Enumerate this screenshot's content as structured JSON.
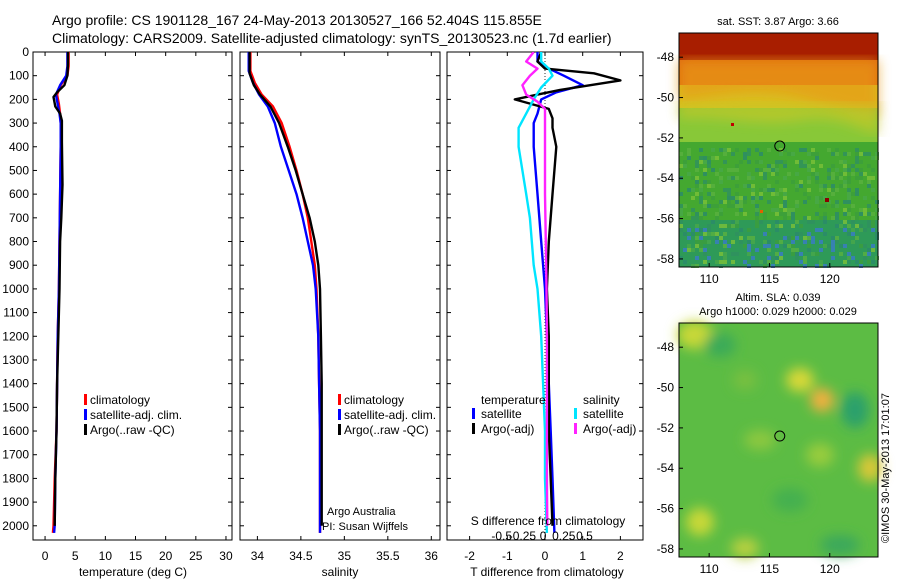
{
  "header": {
    "line1": "Argo profile: CS 1901128_167 24-May-2013 20130527_166 52.404S 115.855E",
    "line2": "Climatology: CARS2009. Satellite-adjusted climatology: synTS_20130523.nc (1.7d earlier)"
  },
  "colors": {
    "climatology": "#ff0000",
    "satellite": "#0000ff",
    "argo": "#000000",
    "satellite_s": "#00e5ff",
    "argo_s": "#ff22ff"
  },
  "chart_data": [
    {
      "id": "temperature",
      "type": "line",
      "xlabel": "temperature (deg C)",
      "ylabel": "",
      "xlim": [
        -2,
        31
      ],
      "ylim": [
        2060,
        0
      ],
      "xticks": [
        0,
        5,
        10,
        15,
        20,
        25,
        30
      ],
      "yticks": [
        0,
        100,
        200,
        300,
        400,
        500,
        600,
        700,
        800,
        900,
        1000,
        1100,
        1200,
        1300,
        1400,
        1500,
        1600,
        1700,
        1800,
        1900,
        2000
      ],
      "legend": [
        "climatology",
        "satellite-adj. clim.",
        "Argo(..raw -QC)"
      ],
      "series": [
        {
          "name": "climatology",
          "color_key": "climatology",
          "points": [
            [
              3.9,
              0
            ],
            [
              3.9,
              60
            ],
            [
              3.7,
              100
            ],
            [
              2.6,
              140
            ],
            [
              2.0,
              180
            ],
            [
              2.3,
              220
            ],
            [
              2.5,
              260
            ],
            [
              2.6,
              300
            ],
            [
              2.6,
              400
            ],
            [
              2.5,
              600
            ],
            [
              2.4,
              800
            ],
            [
              2.3,
              1000
            ],
            [
              2.1,
              1200
            ],
            [
              2.0,
              1400
            ],
            [
              1.9,
              1600
            ],
            [
              1.6,
              1800
            ],
            [
              1.4,
              2000
            ],
            [
              1.3,
              2030
            ]
          ]
        },
        {
          "name": "satellite-adj. clim.",
          "color_key": "satellite",
          "points": [
            [
              3.7,
              0
            ],
            [
              3.7,
              60
            ],
            [
              3.5,
              100
            ],
            [
              2.5,
              140
            ],
            [
              1.8,
              180
            ],
            [
              2.1,
              220
            ],
            [
              2.4,
              260
            ],
            [
              2.6,
              300
            ],
            [
              2.6,
              400
            ],
            [
              2.5,
              600
            ],
            [
              2.4,
              800
            ],
            [
              2.3,
              1000
            ],
            [
              2.1,
              1200
            ],
            [
              2.0,
              1400
            ],
            [
              1.9,
              1600
            ],
            [
              1.7,
              1800
            ],
            [
              1.6,
              2000
            ],
            [
              1.5,
              2030
            ]
          ]
        },
        {
          "name": "Argo(..raw -QC)",
          "color_key": "argo",
          "points": [
            [
              3.8,
              0
            ],
            [
              3.8,
              50
            ],
            [
              3.7,
              100
            ],
            [
              3.2,
              140
            ],
            [
              2.0,
              170
            ],
            [
              1.4,
              190
            ],
            [
              1.7,
              230
            ],
            [
              2.5,
              260
            ],
            [
              2.8,
              290
            ],
            [
              2.8,
              380
            ],
            [
              2.9,
              560
            ],
            [
              2.7,
              700
            ],
            [
              2.5,
              800
            ],
            [
              2.4,
              1000
            ],
            [
              2.2,
              1200
            ],
            [
              2.0,
              1400
            ],
            [
              1.9,
              1600
            ],
            [
              1.7,
              1800
            ],
            [
              1.6,
              2000
            ]
          ]
        }
      ]
    },
    {
      "id": "salinity",
      "type": "line",
      "xlabel": "salinity",
      "ylabel": "",
      "xlim": [
        33.8,
        36.1
      ],
      "ylim": [
        2060,
        0
      ],
      "xticks": [
        34,
        34.5,
        35,
        35.5,
        36
      ],
      "legend": [
        "climatology",
        "satellite-adj. clim.",
        "Argo(..raw -QC)"
      ],
      "annotation": [
        "Argo Australia",
        "PI: Susan Wijffels"
      ],
      "series": [
        {
          "name": "climatology",
          "color_key": "climatology",
          "points": [
            [
              33.92,
              0
            ],
            [
              33.92,
              80
            ],
            [
              33.97,
              130
            ],
            [
              34.05,
              180
            ],
            [
              34.18,
              230
            ],
            [
              34.28,
              300
            ],
            [
              34.37,
              400
            ],
            [
              34.45,
              500
            ],
            [
              34.52,
              600
            ],
            [
              34.58,
              700
            ],
            [
              34.62,
              800
            ],
            [
              34.66,
              900
            ],
            [
              34.68,
              1000
            ],
            [
              34.7,
              1200
            ],
            [
              34.71,
              1400
            ],
            [
              34.72,
              1600
            ],
            [
              34.72,
              1800
            ],
            [
              34.72,
              2030
            ]
          ]
        },
        {
          "name": "satellite-adj. clim.",
          "color_key": "satellite",
          "points": [
            [
              33.9,
              0
            ],
            [
              33.9,
              80
            ],
            [
              33.95,
              130
            ],
            [
              34.02,
              180
            ],
            [
              34.12,
              230
            ],
            [
              34.2,
              300
            ],
            [
              34.27,
              400
            ],
            [
              34.36,
              500
            ],
            [
              34.45,
              600
            ],
            [
              34.52,
              700
            ],
            [
              34.58,
              800
            ],
            [
              34.64,
              900
            ],
            [
              34.67,
              1000
            ],
            [
              34.7,
              1200
            ],
            [
              34.71,
              1400
            ],
            [
              34.72,
              1600
            ],
            [
              34.72,
              1800
            ],
            [
              34.72,
              2030
            ]
          ]
        },
        {
          "name": "Argo(..raw -QC)",
          "color_key": "argo",
          "points": [
            [
              33.91,
              0
            ],
            [
              33.91,
              90
            ],
            [
              33.96,
              140
            ],
            [
              34.03,
              180
            ],
            [
              34.15,
              230
            ],
            [
              34.25,
              300
            ],
            [
              34.35,
              400
            ],
            [
              34.44,
              500
            ],
            [
              34.52,
              600
            ],
            [
              34.6,
              700
            ],
            [
              34.66,
              800
            ],
            [
              34.7,
              900
            ],
            [
              34.72,
              1000
            ],
            [
              34.73,
              1200
            ],
            [
              34.74,
              1400
            ],
            [
              34.74,
              1600
            ],
            [
              34.74,
              1800
            ],
            [
              34.74,
              2000
            ]
          ]
        }
      ]
    },
    {
      "id": "difference",
      "type": "line",
      "xlabel": "T difference from climatology",
      "xlabel_top": "S difference from climatology",
      "xlim": [
        -2.6,
        2.6
      ],
      "ylim": [
        2060,
        0
      ],
      "xticks": [
        -2,
        -1,
        0,
        1,
        2
      ],
      "xticks_labels": [
        "-2",
        "-1",
        "0",
        "1",
        "2"
      ],
      "sticks_labels": [
        "-0.5",
        "-0.25",
        "0",
        "0.25",
        "0.5"
      ],
      "legend_titles": [
        "temperature",
        "salinity"
      ],
      "legend": [
        "satellite",
        "Argo(-adj)",
        "satellite",
        "Argo(-adj)"
      ],
      "series": [
        {
          "name": "satellite (T)",
          "color_key": "satellite",
          "points": [
            [
              -0.2,
              0
            ],
            [
              -0.2,
              40
            ],
            [
              0.1,
              70
            ],
            [
              0.5,
              100
            ],
            [
              1.0,
              140
            ],
            [
              0.3,
              170
            ],
            [
              -0.1,
              200
            ],
            [
              -0.2,
              260
            ],
            [
              -0.3,
              300
            ],
            [
              -0.3,
              400
            ],
            [
              -0.2,
              600
            ],
            [
              -0.1,
              800
            ],
            [
              0.0,
              1000
            ],
            [
              0.05,
              1200
            ],
            [
              0.1,
              1400
            ],
            [
              0.15,
              1600
            ],
            [
              0.2,
              1800
            ],
            [
              0.25,
              2030
            ]
          ]
        },
        {
          "name": "Argo(-adj) (T)",
          "color_key": "argo",
          "points": [
            [
              -0.1,
              0
            ],
            [
              -0.2,
              40
            ],
            [
              0.0,
              70
            ],
            [
              1.3,
              90
            ],
            [
              2.0,
              120
            ],
            [
              0.4,
              160
            ],
            [
              -0.2,
              180
            ],
            [
              -0.8,
              200
            ],
            [
              0.1,
              240
            ],
            [
              0.2,
              280
            ],
            [
              0.2,
              320
            ],
            [
              0.3,
              400
            ],
            [
              0.2,
              600
            ],
            [
              0.1,
              800
            ],
            [
              0.05,
              1000
            ],
            [
              0.1,
              1200
            ],
            [
              0.1,
              1400
            ],
            [
              0.1,
              1600
            ],
            [
              0.15,
              1800
            ],
            [
              0.2,
              2000
            ]
          ]
        },
        {
          "name": "satellite (S)",
          "color_key": "satellite_s",
          "points": [
            [
              -0.1,
              0
            ],
            [
              -0.1,
              40
            ],
            [
              0.1,
              70
            ],
            [
              0.2,
              100
            ],
            [
              -0.1,
              150
            ],
            [
              -0.3,
              200
            ],
            [
              -0.5,
              260
            ],
            [
              -0.7,
              320
            ],
            [
              -0.7,
              400
            ],
            [
              -0.6,
              500
            ],
            [
              -0.5,
              600
            ],
            [
              -0.4,
              700
            ],
            [
              -0.35,
              800
            ],
            [
              -0.3,
              900
            ],
            [
              -0.2,
              1000
            ],
            [
              -0.1,
              1200
            ],
            [
              -0.05,
              1400
            ],
            [
              0.0,
              1600
            ],
            [
              0.0,
              1800
            ],
            [
              0.05,
              2030
            ]
          ]
        },
        {
          "name": "Argo(-adj) (S)",
          "color_key": "argo_s",
          "points": [
            [
              -0.3,
              0
            ],
            [
              -0.5,
              40
            ],
            [
              -0.2,
              70
            ],
            [
              -0.4,
              100
            ],
            [
              -0.6,
              140
            ],
            [
              -0.5,
              180
            ],
            [
              -0.2,
              210
            ],
            [
              0.0,
              240
            ],
            [
              0.0,
              300
            ],
            [
              0.0,
              400
            ],
            [
              0.0,
              600
            ],
            [
              0.02,
              800
            ],
            [
              0.04,
              1000
            ],
            [
              0.05,
              1200
            ],
            [
              0.05,
              1400
            ],
            [
              0.05,
              1600
            ],
            [
              0.05,
              1800
            ],
            [
              0.06,
              2000
            ]
          ]
        }
      ]
    },
    {
      "id": "sst_map",
      "type": "heatmap",
      "title": "sat. SST: 3.87 Argo: 3.66",
      "xlim": [
        107.5,
        124.0
      ],
      "ylim": [
        -58.4,
        -46.8
      ],
      "xticks": [
        110,
        115,
        120
      ],
      "yticks": [
        -48,
        -50,
        -52,
        -54,
        -56,
        -58
      ],
      "marker": [
        115.855,
        -52.404
      ]
    },
    {
      "id": "sla_map",
      "type": "heatmap",
      "title_line1": "Altim. SLA: 0.039",
      "title_line2": "Argo h1000: 0.029 h2000: 0.029",
      "xlim": [
        107.5,
        124.0
      ],
      "ylim": [
        -58.4,
        -46.8
      ],
      "xticks": [
        110,
        115,
        120
      ],
      "yticks": [
        -48,
        -50,
        -52,
        -54,
        -56,
        -58
      ],
      "marker": [
        115.855,
        -52.404
      ]
    }
  ],
  "side_label": "©IMOS 30-May-2013 17:01:07"
}
